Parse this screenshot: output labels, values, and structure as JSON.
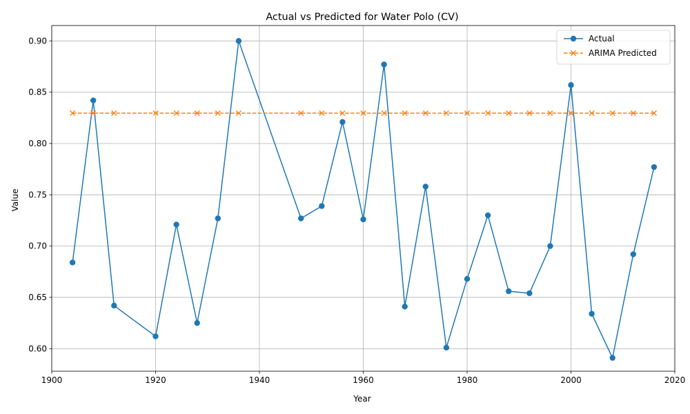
{
  "chart_data": {
    "type": "line",
    "title": "Actual vs Predicted for Water Polo (CV)",
    "xlabel": "Year",
    "ylabel": "Value",
    "xlim": [
      1900,
      2020
    ],
    "ylim": [
      0.578,
      0.915
    ],
    "xticks": [
      1900,
      1920,
      1940,
      1960,
      1980,
      2000,
      2020
    ],
    "yticks": [
      0.6,
      0.65,
      0.7,
      0.75,
      0.8,
      0.85,
      0.9
    ],
    "ytick_labels": [
      "0.60",
      "0.65",
      "0.70",
      "0.75",
      "0.80",
      "0.85",
      "0.90"
    ],
    "grid": true,
    "legend_position": "top-right",
    "x": [
      1904,
      1908,
      1912,
      1920,
      1924,
      1928,
      1932,
      1936,
      1948,
      1952,
      1956,
      1960,
      1964,
      1968,
      1972,
      1976,
      1980,
      1984,
      1988,
      1992,
      1996,
      2000,
      2004,
      2008,
      2012,
      2016
    ],
    "series": [
      {
        "name": "Actual",
        "color": "#1f77b4",
        "marker": "circle",
        "linestyle": "solid",
        "values": [
          0.684,
          0.842,
          0.642,
          0.612,
          0.721,
          0.625,
          0.727,
          0.9,
          0.727,
          0.739,
          0.821,
          0.726,
          0.877,
          0.641,
          0.758,
          0.601,
          0.668,
          0.73,
          0.656,
          0.654,
          0.7,
          0.857,
          0.634,
          0.591,
          0.692,
          0.777
        ]
      },
      {
        "name": "ARIMA Predicted",
        "color": "#ff7f0e",
        "marker": "x",
        "linestyle": "dashed",
        "values": [
          0.8296,
          0.8296,
          0.8296,
          0.8296,
          0.8296,
          0.8296,
          0.8296,
          0.8296,
          0.8296,
          0.8296,
          0.8296,
          0.8296,
          0.8296,
          0.8296,
          0.8296,
          0.8296,
          0.8296,
          0.8296,
          0.8296,
          0.8296,
          0.8296,
          0.8296,
          0.8296,
          0.8296,
          0.8296,
          0.8296
        ]
      }
    ]
  }
}
